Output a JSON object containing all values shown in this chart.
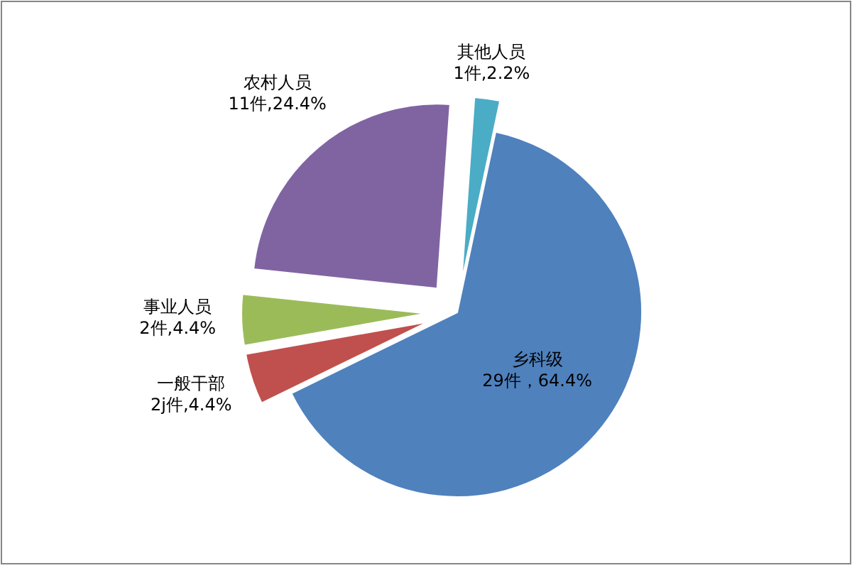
{
  "chart_data": {
    "type": "pie",
    "categories": [
      "乡科级",
      "一般干部",
      "事业人员",
      "农村人员",
      "其他人员"
    ],
    "values": [
      29,
      2,
      2,
      11,
      1
    ],
    "value_labels": [
      "29件，64.4%",
      "2j件,4.4%",
      "2件,4.4%",
      "11件,24.4%",
      "1件,2.2%"
    ],
    "colors": [
      "#4f81bd",
      "#c0504d",
      "#9bbb59",
      "#8064a2",
      "#4bacc6"
    ]
  }
}
